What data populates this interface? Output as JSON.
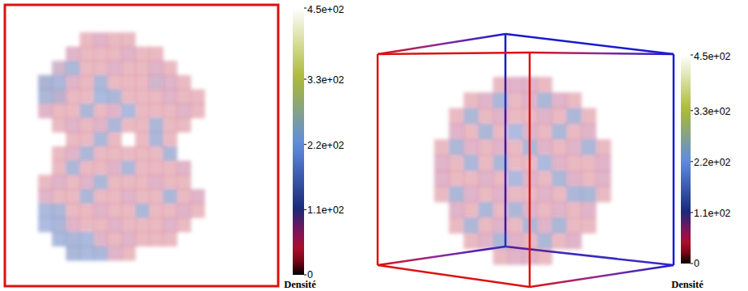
{
  "chart_data": [
    {
      "type": "heatmap",
      "cells": [
        [
          null,
          null,
          null,
          null,
          40,
          60,
          40,
          40,
          null,
          null,
          null,
          null,
          null,
          null
        ],
        [
          null,
          null,
          null,
          60,
          40,
          40,
          40,
          60,
          40,
          40,
          null,
          null,
          null,
          null
        ],
        [
          null,
          null,
          80,
          150,
          40,
          40,
          60,
          40,
          40,
          60,
          40,
          null,
          null,
          null
        ],
        [
          null,
          120,
          160,
          60,
          40,
          150,
          40,
          40,
          40,
          80,
          60,
          40,
          null,
          null
        ],
        [
          null,
          150,
          100,
          40,
          40,
          170,
          150,
          40,
          40,
          40,
          60,
          40,
          40,
          null
        ],
        [
          null,
          60,
          40,
          40,
          150,
          40,
          60,
          170,
          40,
          40,
          40,
          60,
          40,
          null
        ],
        [
          null,
          null,
          40,
          60,
          40,
          60,
          160,
          40,
          40,
          150,
          40,
          40,
          null,
          null
        ],
        [
          null,
          null,
          null,
          40,
          40,
          150,
          40,
          null,
          40,
          160,
          40,
          null,
          null,
          null
        ],
        [
          null,
          null,
          40,
          60,
          160,
          40,
          40,
          40,
          40,
          40,
          150,
          null,
          null,
          null
        ],
        [
          null,
          null,
          40,
          150,
          40,
          40,
          60,
          150,
          40,
          40,
          40,
          60,
          null,
          null
        ],
        [
          null,
          40,
          60,
          40,
          60,
          150,
          40,
          40,
          40,
          60,
          40,
          40,
          null,
          null
        ],
        [
          null,
          60,
          40,
          40,
          150,
          40,
          40,
          60,
          40,
          40,
          150,
          40,
          60,
          null
        ],
        [
          null,
          170,
          150,
          40,
          40,
          60,
          40,
          40,
          150,
          40,
          40,
          60,
          40,
          null
        ],
        [
          null,
          180,
          160,
          60,
          40,
          40,
          60,
          40,
          40,
          40,
          60,
          40,
          null,
          null
        ],
        [
          null,
          null,
          170,
          160,
          170,
          60,
          40,
          60,
          40,
          40,
          40,
          null,
          null,
          null
        ],
        [
          null,
          null,
          null,
          150,
          170,
          160,
          60,
          40,
          null,
          null,
          null,
          null,
          null,
          null
        ]
      ],
      "colorbar": {
        "range": [
          0,
          450
        ],
        "ticks": [
          0,
          {
            "value": 110,
            "label": "1.1e+02"
          },
          {
            "value": 220,
            "label": "2.2e+02"
          },
          {
            "value": 330,
            "label": "3.3e+02"
          },
          {
            "value": 450,
            "label": "4.5e+02"
          }
        ],
        "label": "Densité"
      }
    },
    {
      "type": "heatmap",
      "cells": [
        [
          null,
          null,
          null,
          null,
          40,
          60,
          60,
          40,
          null,
          null,
          null,
          null
        ],
        [
          null,
          null,
          40,
          60,
          150,
          40,
          60,
          150,
          60,
          40,
          null,
          null
        ],
        [
          null,
          40,
          150,
          40,
          60,
          40,
          40,
          60,
          40,
          150,
          40,
          null
        ],
        [
          null,
          60,
          40,
          150,
          40,
          180,
          60,
          40,
          150,
          40,
          60,
          null
        ],
        [
          40,
          150,
          60,
          40,
          60,
          40,
          150,
          60,
          40,
          60,
          150,
          40
        ],
        [
          60,
          40,
          160,
          40,
          150,
          40,
          40,
          170,
          60,
          40,
          40,
          60
        ],
        [
          60,
          40,
          40,
          60,
          40,
          170,
          60,
          40,
          150,
          60,
          40,
          60
        ],
        [
          40,
          150,
          60,
          40,
          60,
          40,
          40,
          60,
          40,
          160,
          150,
          40
        ],
        [
          null,
          60,
          40,
          160,
          40,
          150,
          60,
          40,
          60,
          40,
          60,
          null
        ],
        [
          null,
          40,
          150,
          40,
          60,
          40,
          150,
          60,
          150,
          40,
          40,
          null
        ],
        [
          null,
          null,
          40,
          60,
          150,
          60,
          40,
          150,
          40,
          60,
          null,
          null
        ],
        [
          null,
          null,
          null,
          null,
          40,
          60,
          60,
          40,
          null,
          null,
          null,
          null
        ]
      ],
      "colorbar": {
        "range": [
          0,
          450
        ],
        "ticks": [
          0,
          {
            "value": 110,
            "label": "1.1e+02"
          },
          {
            "value": 220,
            "label": "2.2e+02"
          },
          {
            "value": 330,
            "label": "3.3e+02"
          },
          {
            "value": 450,
            "label": "4.5e+02"
          }
        ],
        "label": "Densité"
      }
    }
  ]
}
